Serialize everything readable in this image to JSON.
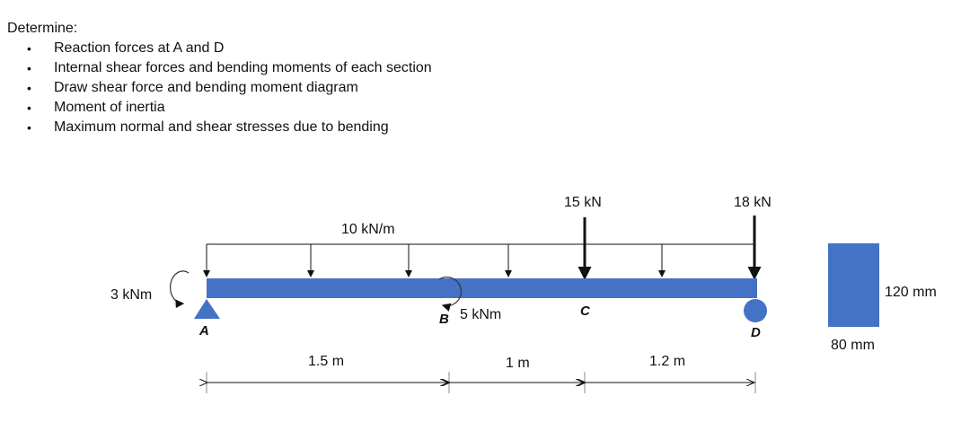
{
  "heading": "Determine:",
  "tasks": [
    "Reaction forces at A and D",
    "Internal shear forces and bending moments of each section",
    "Draw shear force and bending moment diagram",
    "Moment of inertia",
    "Maximum normal and shear stresses due to bending"
  ],
  "beam": {
    "color": "#4472C4",
    "distributed_load": "10 kN/m",
    "point_load_c": "15 kN",
    "point_load_d": "18 kN",
    "moment_a": "3 kNm",
    "moment_b": "5 kNm",
    "points": {
      "a": "A",
      "b": "B",
      "c": "C",
      "d": "D"
    },
    "spans": [
      "1.5 m",
      "1 m",
      "1.2 m"
    ]
  },
  "section": {
    "height": "120 mm",
    "width": "80 mm"
  }
}
